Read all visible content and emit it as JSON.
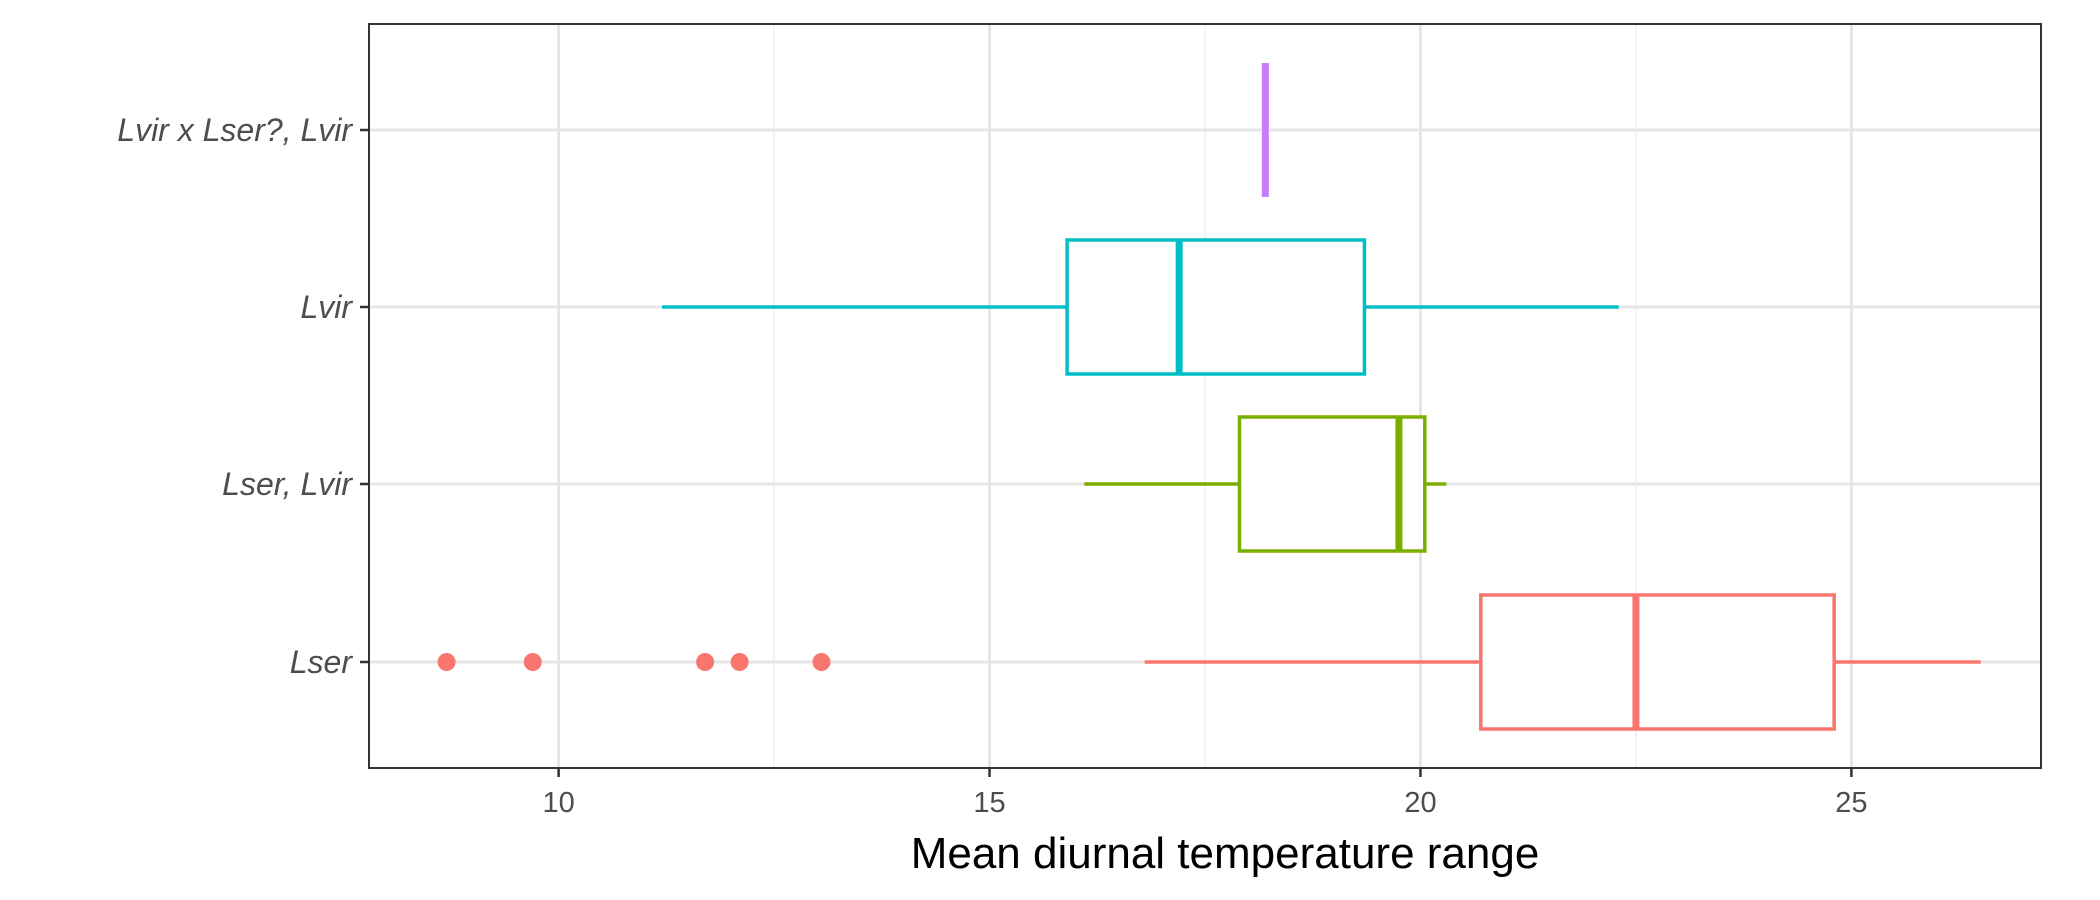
{
  "chart_data": {
    "type": "boxplot",
    "orientation": "horizontal",
    "title": "",
    "xlabel": "Mean diurnal temperature range",
    "ylabel": "",
    "xlim": [
      7.8,
      27.2
    ],
    "xticks": [
      10,
      15,
      20,
      25
    ],
    "grid": true,
    "legend": "none",
    "categories": [
      "Lvir x Lser?, Lvir",
      "Lvir",
      "Lser, Lvir",
      "Lser"
    ],
    "series": [
      {
        "category": "Lvir x Lser?, Lvir",
        "color": "#C77CFF",
        "min": 18.2,
        "q1": 18.2,
        "median": 18.2,
        "q3": 18.2,
        "max": 18.2,
        "outliers": []
      },
      {
        "category": "Lvir",
        "color": "#00BFC4",
        "min": 11.2,
        "q1": 15.9,
        "median": 17.2,
        "q3": 19.35,
        "max": 22.3,
        "outliers": []
      },
      {
        "category": "Lser, Lvir",
        "color": "#7CAE00",
        "min": 16.1,
        "q1": 17.9,
        "median": 19.75,
        "q3": 20.05,
        "max": 20.3,
        "outliers": []
      },
      {
        "category": "Lser",
        "color": "#F8766D",
        "min": 16.8,
        "q1": 20.7,
        "median": 22.5,
        "q3": 24.8,
        "max": 26.5,
        "outliers": [
          8.7,
          9.7,
          11.7,
          12.1,
          13.05
        ]
      }
    ]
  }
}
